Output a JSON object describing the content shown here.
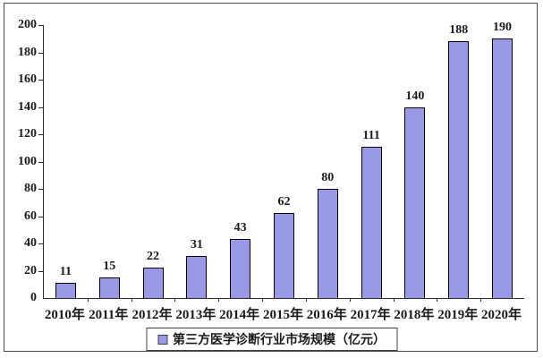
{
  "figure": {
    "background": "#ffffff",
    "border_color": "#4d4d4d"
  },
  "chart_data": {
    "type": "bar",
    "title": "",
    "xlabel": "",
    "ylabel": "",
    "categories": [
      "2010年",
      "2011年",
      "2012年",
      "2013年",
      "2014年",
      "2015年",
      "2016年",
      "2017年",
      "2018年",
      "2019年",
      "2020年"
    ],
    "values": [
      11,
      15,
      22,
      31,
      43,
      62,
      80,
      111,
      140,
      188,
      190
    ],
    "ylim": [
      0,
      200
    ],
    "y_ticks": [
      0,
      20,
      40,
      60,
      80,
      100,
      120,
      140,
      160,
      180,
      200
    ],
    "grid": false,
    "value_labels": true,
    "legend": {
      "position": "bottom",
      "label": "第三方医学诊断行业市场规模（亿元）"
    },
    "colors": {
      "bar_fill": "#9999E8",
      "bar_border": "#000000",
      "axis": "#2b2b2b",
      "text": "#1a1a1a"
    }
  }
}
